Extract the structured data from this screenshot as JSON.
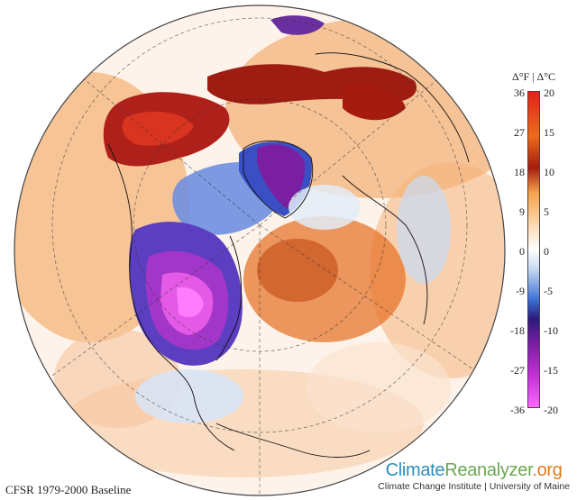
{
  "map": {
    "type": "Northern Hemisphere orthographic temperature anomaly map",
    "anomaly_pattern": [
      {
        "region": "central and eastern North America",
        "anomaly": "strong cold",
        "color": "#d03ad8"
      },
      {
        "region": "Greenland",
        "anomaly": "strong cold",
        "color": "#7a1fa2"
      },
      {
        "region": "Canadian Arctic / Baffin Bay",
        "anomaly": "cold",
        "color": "#3d6fd6"
      },
      {
        "region": "Alaska / Yukon",
        "anomaly": "strong warm",
        "color": "#b0201a"
      },
      {
        "region": "Arctic coast of Siberia",
        "anomaly": "strong warm",
        "color": "#b0201a"
      },
      {
        "region": "North Atlantic",
        "anomaly": "warm",
        "color": "#e07b2a"
      },
      {
        "region": "Central Asia",
        "anomaly": "warm",
        "color": "#f0a060"
      }
    ]
  },
  "legend": {
    "header": "Δ°F | Δ°C",
    "fahrenheit_ticks": [
      "36",
      "27",
      "18",
      "9",
      "0",
      "-9",
      "-18",
      "-27",
      "-36"
    ],
    "celsius_ticks": [
      "20",
      "15",
      "10",
      "5",
      "0",
      "-5",
      "-10",
      "-15",
      "-20"
    ]
  },
  "baseline_label": "CFSR 1979-2000 Baseline",
  "brand": {
    "climate": "Climate",
    "reanalyzer": "Reanalyzer",
    "org": ".org",
    "subtitle": "Climate Change Institute | University of Maine"
  }
}
